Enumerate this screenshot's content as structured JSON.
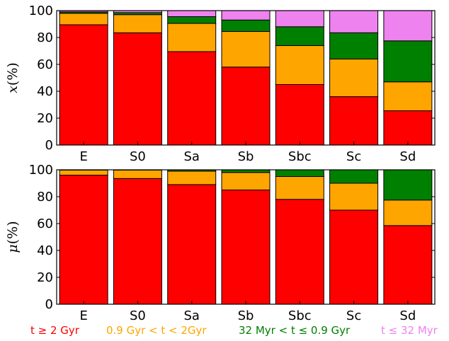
{
  "chart_data": [
    {
      "type": "bar",
      "stacked": true,
      "ylabel_var": "x",
      "ylabel_unit": "(%)",
      "categories": [
        "E",
        "S0",
        "Sa",
        "Sb",
        "Sbc",
        "Sc",
        "Sd"
      ],
      "ylim": [
        0,
        100
      ],
      "yticks": [
        "0",
        "20",
        "40",
        "60",
        "80",
        "100"
      ],
      "grid": false,
      "series": [
        {
          "key": "old",
          "color": "#ff0000",
          "values": [
            89.5,
            83.5,
            69.5,
            58,
            45,
            36,
            25.5
          ]
        },
        {
          "key": "intermediate",
          "color": "#ffa500",
          "values": [
            8.5,
            13.5,
            21,
            26.5,
            29,
            28,
            21.5
          ]
        },
        {
          "key": "young",
          "color": "#008000",
          "values": [
            1,
            1.5,
            5,
            8.5,
            14,
            19.5,
            30.5
          ]
        },
        {
          "key": "youngest",
          "color": "#ee82ee",
          "values": [
            1,
            1.5,
            4.5,
            7,
            12,
            16.5,
            22.5
          ]
        }
      ]
    },
    {
      "type": "bar",
      "stacked": true,
      "ylabel_var": "μ",
      "ylabel_unit": "(%)",
      "categories": [
        "E",
        "S0",
        "Sa",
        "Sb",
        "Sbc",
        "Sc",
        "Sd"
      ],
      "ylim": [
        0,
        100
      ],
      "yticks": [
        "0",
        "20",
        "40",
        "60",
        "80",
        "100"
      ],
      "grid": false,
      "series": [
        {
          "key": "old",
          "color": "#ff0000",
          "values": [
            96,
            93.5,
            89,
            85,
            78,
            70,
            58.5
          ]
        },
        {
          "key": "intermediate",
          "color": "#ffa500",
          "values": [
            3.8,
            6.3,
            10,
            13,
            17,
            20,
            19
          ]
        },
        {
          "key": "young",
          "color": "#008000",
          "values": [
            0.2,
            0.2,
            1,
            2,
            5,
            10,
            22.5
          ]
        },
        {
          "key": "youngest",
          "color": "#ee82ee",
          "values": [
            0,
            0,
            0,
            0,
            0,
            0,
            0
          ]
        }
      ]
    }
  ],
  "legend": {
    "placement": "bottom",
    "items": [
      {
        "label": "t ≥ 2 Gyr",
        "color": "#ff0000"
      },
      {
        "label": "0.9 Gyr < t <  2Gyr",
        "color": "#ffa500"
      },
      {
        "label": "32 Myr < t ≤  0.9 Gyr",
        "color": "#008000"
      },
      {
        "label": "t ≤ 32 Myr",
        "color": "#ee82ee"
      }
    ]
  }
}
